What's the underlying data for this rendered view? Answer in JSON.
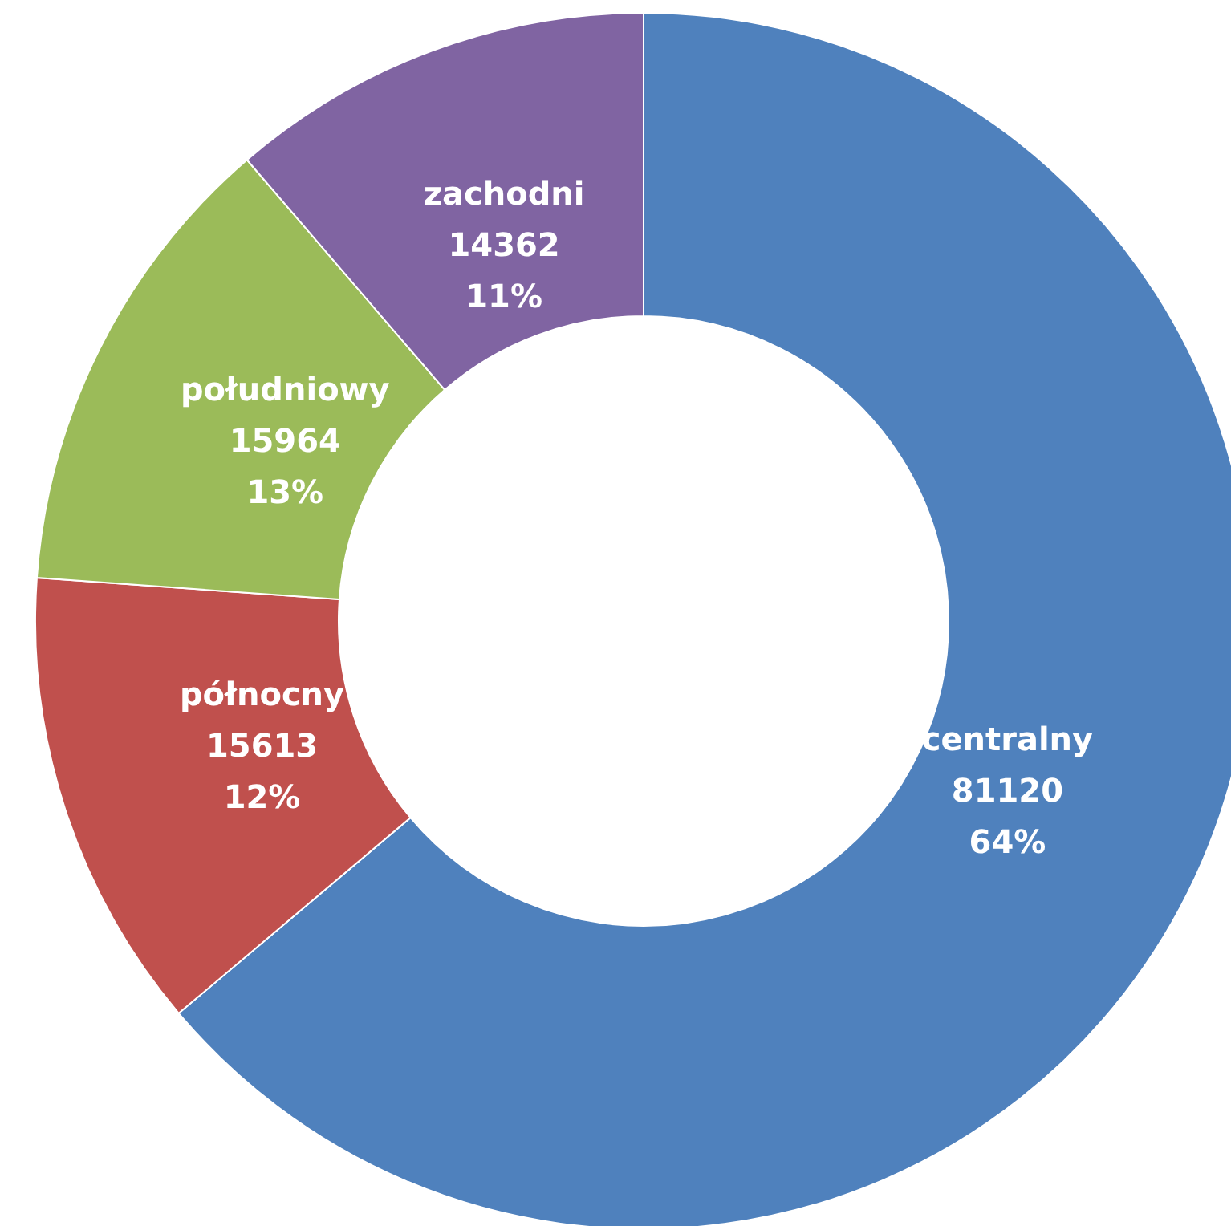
{
  "chart_data": {
    "type": "donut",
    "categories": [
      "centralny",
      "północny",
      "południowy",
      "zachodni"
    ],
    "values": [
      81120,
      15613,
      15964,
      14362
    ],
    "colors": [
      "#4f81bd",
      "#c0504d",
      "#9bbb59",
      "#8064a2"
    ],
    "value_labels": [
      "81120\n64%",
      "15613\n12%",
      "15964\n13%",
      "14362\n11%"
    ],
    "legend": false
  }
}
